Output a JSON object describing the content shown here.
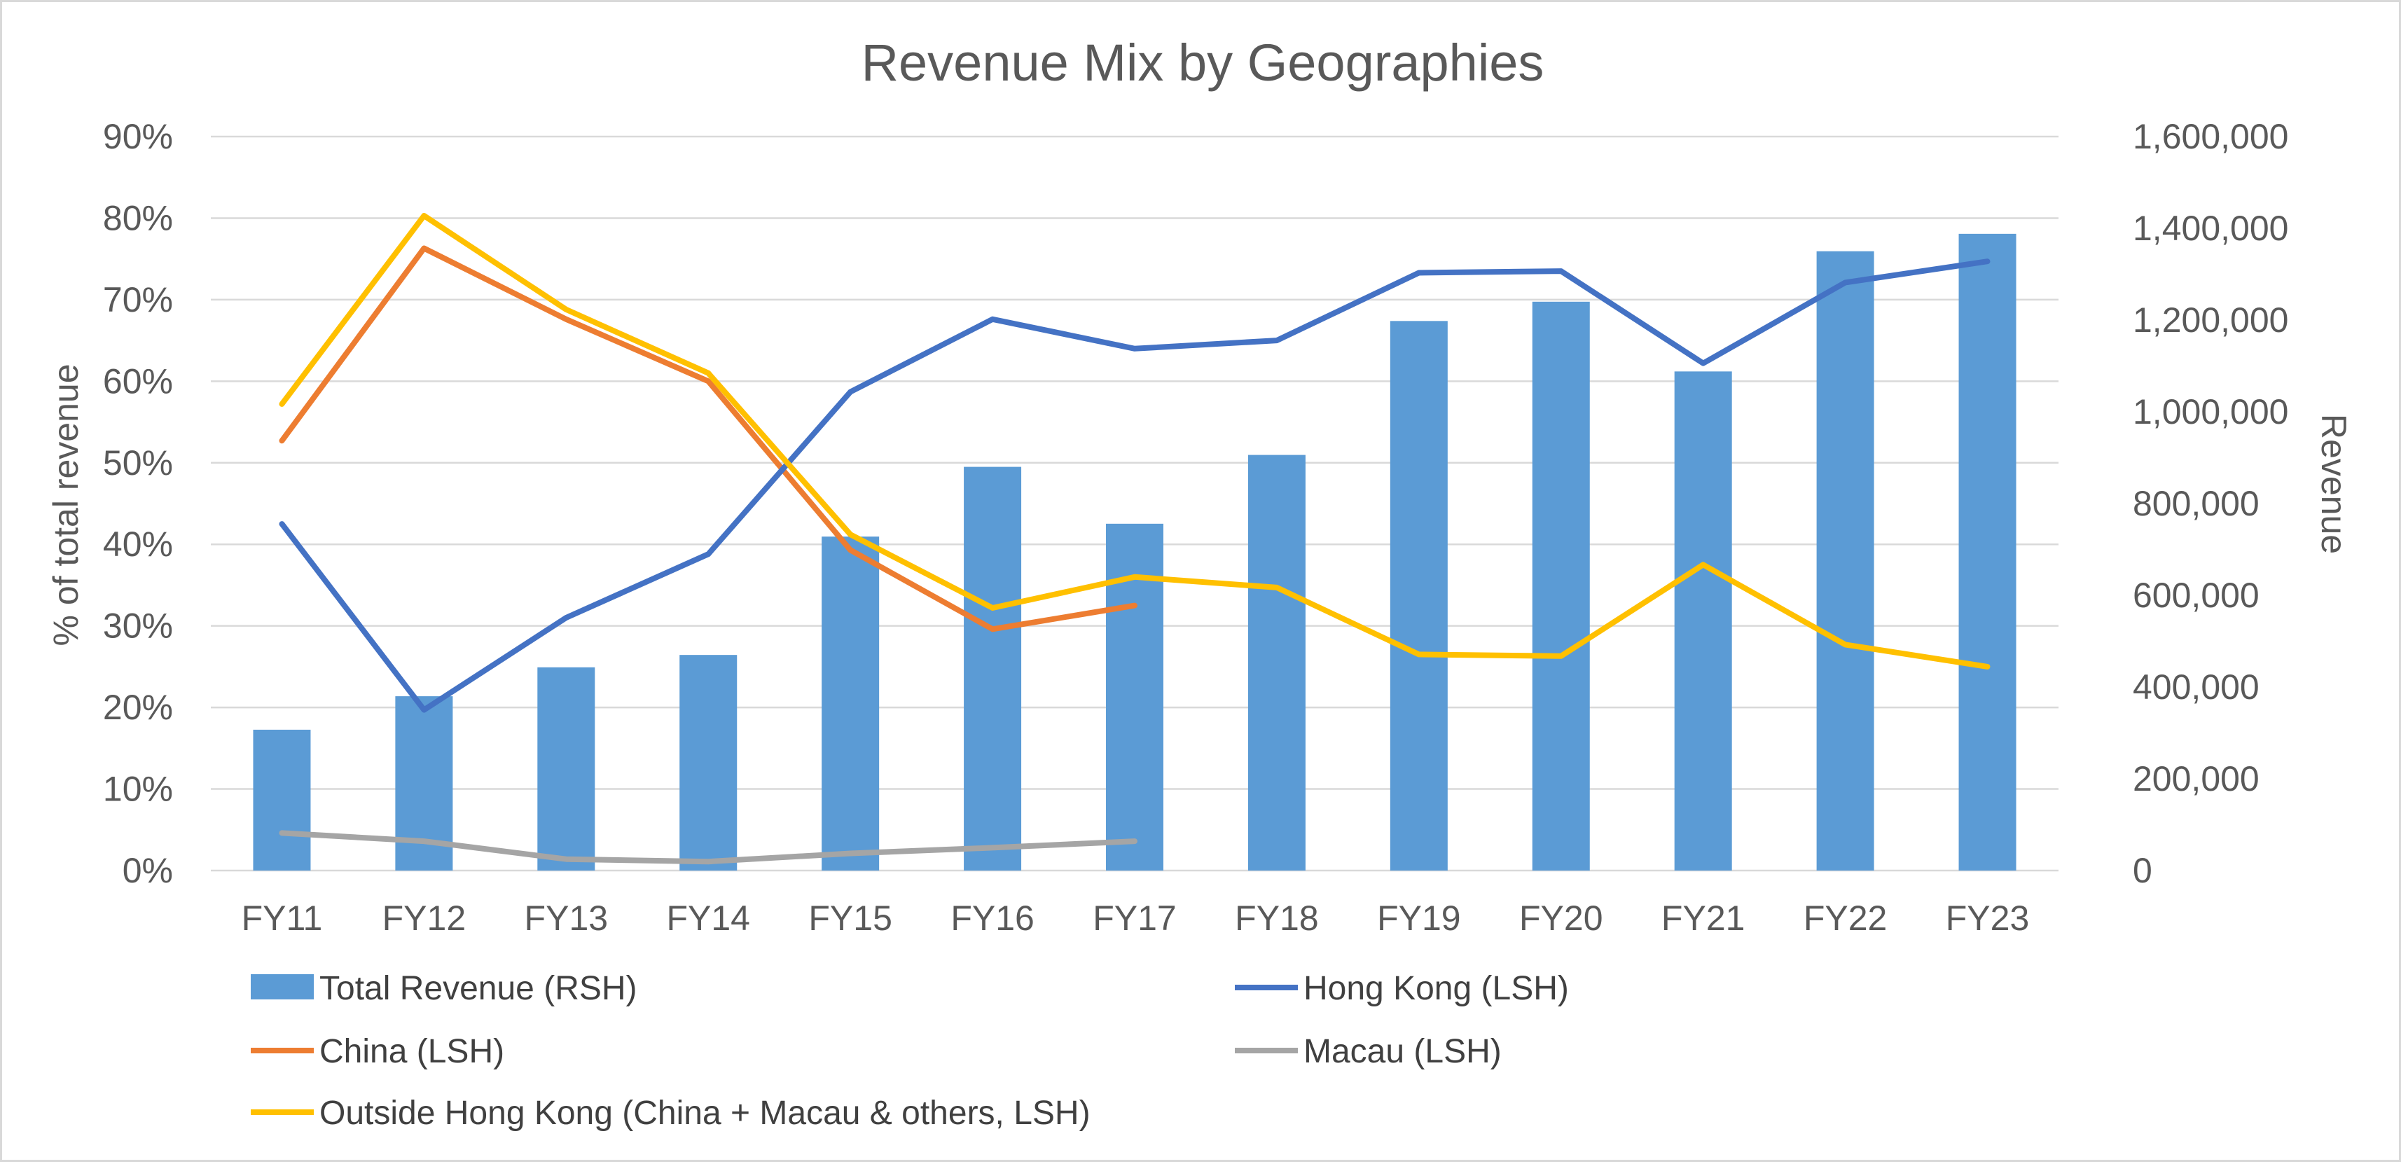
{
  "chart_data": {
    "type": "bar",
    "title": "Revenue Mix by Geographies",
    "categories": [
      "FY11",
      "FY12",
      "FY13",
      "FY14",
      "FY15",
      "FY16",
      "FY17",
      "FY18",
      "FY19",
      "FY20",
      "FY21",
      "FY22",
      "FY23"
    ],
    "y_left": {
      "label": "% of total revenue",
      "range": [
        0,
        0.9
      ],
      "ticks": [
        0,
        0.1,
        0.2,
        0.3,
        0.4,
        0.5,
        0.6,
        0.7,
        0.8,
        0.9
      ],
      "tick_labels": [
        "0%",
        "10%",
        "20%",
        "30%",
        "40%",
        "50%",
        "60%",
        "70%",
        "80%",
        "90%"
      ]
    },
    "y_right": {
      "label": "Revenue",
      "range": [
        0,
        1600000
      ],
      "ticks": [
        0,
        200000,
        400000,
        600000,
        800000,
        1000000,
        1200000,
        1400000,
        1600000
      ],
      "tick_labels": [
        "0",
        "200,000",
        "400,000",
        "600,000",
        "800,000",
        "1,000,000",
        "1,200,000",
        "1,400,000",
        "1,600,000"
      ]
    },
    "grid": true,
    "legend_position": "bottom",
    "series": [
      {
        "name": "Total Revenue (RSH)",
        "type": "bar",
        "axis": "right",
        "color": "#5b9bd5",
        "values": [
          307000,
          380000,
          443000,
          470000,
          728000,
          880000,
          756000,
          906000,
          1198000,
          1240000,
          1088000,
          1350000,
          1388000
        ]
      },
      {
        "name": "Hong Kong (LSH)",
        "type": "line",
        "axis": "left",
        "color": "#4472c4",
        "values": [
          0.425,
          0.197,
          0.31,
          0.388,
          0.587,
          0.676,
          0.64,
          0.65,
          0.733,
          0.735,
          0.622,
          0.721,
          0.747
        ]
      },
      {
        "name": "China (LSH)",
        "type": "line",
        "axis": "left",
        "color": "#ed7d31",
        "values": [
          0.527,
          0.763,
          0.676,
          0.6,
          0.393,
          0.296,
          0.325,
          null,
          null,
          null,
          null,
          null,
          null
        ]
      },
      {
        "name": "Macau (LSH)",
        "type": "line",
        "axis": "left",
        "color": "#a5a5a5",
        "values": [
          0.046,
          0.036,
          0.014,
          0.011,
          0.021,
          0.028,
          0.036,
          null,
          null,
          null,
          null,
          null,
          null
        ]
      },
      {
        "name": "Outside Hong Kong (China + Macau & others, LSH)",
        "type": "line",
        "axis": "left",
        "color": "#ffc000",
        "values": [
          0.572,
          0.803,
          0.688,
          0.61,
          0.412,
          0.322,
          0.36,
          0.347,
          0.265,
          0.263,
          0.375,
          0.277,
          0.25
        ]
      }
    ]
  }
}
